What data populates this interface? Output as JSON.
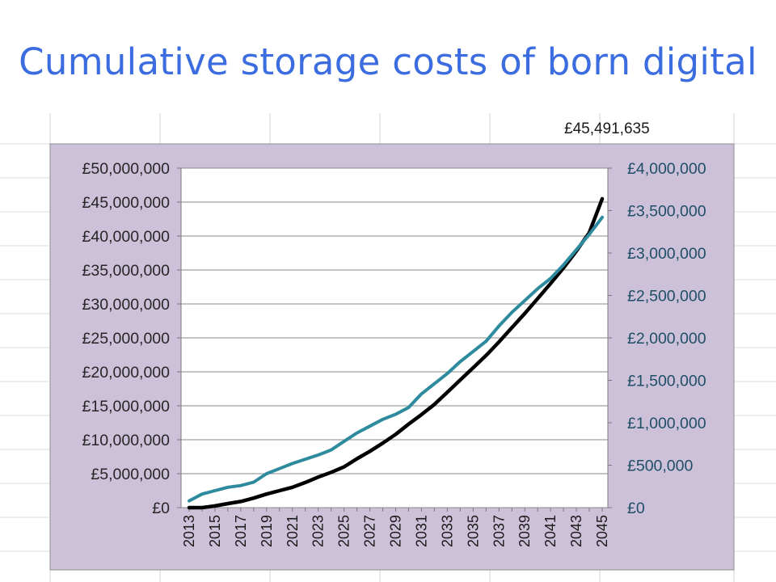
{
  "slide": {
    "title": "Cumulative storage costs of born digital"
  },
  "chart_data": {
    "type": "line",
    "annotation": "£45,491,635",
    "x": [
      2013,
      2014,
      2015,
      2016,
      2017,
      2018,
      2019,
      2020,
      2021,
      2022,
      2023,
      2024,
      2025,
      2026,
      2027,
      2028,
      2029,
      2030,
      2031,
      2032,
      2033,
      2034,
      2035,
      2036,
      2037,
      2038,
      2039,
      2040,
      2041,
      2042,
      2043,
      2044,
      2045
    ],
    "x_tick_labels": [
      "2013",
      "2015",
      "2017",
      "2019",
      "2021",
      "2023",
      "2025",
      "2027",
      "2029",
      "2031",
      "2033",
      "2035",
      "2037",
      "2039",
      "2041",
      "2043",
      "2045"
    ],
    "left_axis": {
      "ylim": [
        0,
        50000000
      ],
      "tick_labels": [
        "£0",
        "£5,000,000",
        "£10,000,000",
        "£15,000,000",
        "£20,000,000",
        "£25,000,000",
        "£30,000,000",
        "£35,000,000",
        "£40,000,000",
        "£45,000,000",
        "£50,000,000"
      ]
    },
    "right_axis": {
      "ylim": [
        0,
        4000000
      ],
      "tick_labels": [
        "£0",
        "£500,000",
        "£1,000,000",
        "£1,500,000",
        "£2,000,000",
        "£2,500,000",
        "£3,000,000",
        "£3,500,000",
        "£4,000,000"
      ]
    },
    "series": [
      {
        "axis": "left",
        "color": "#000000",
        "values": [
          0,
          0,
          250000,
          600000,
          900000,
          1400000,
          2000000,
          2500000,
          3000000,
          3700000,
          4500000,
          5200000,
          6000000,
          7200000,
          8300000,
          9500000,
          10800000,
          12300000,
          13700000,
          15200000,
          17000000,
          18800000,
          20600000,
          22400000,
          24400000,
          26500000,
          28600000,
          30800000,
          33000000,
          35300000,
          37800000,
          40500000,
          45491635
        ]
      },
      {
        "axis": "right",
        "color": "#2e8b9e",
        "values": [
          80000,
          160000,
          200000,
          240000,
          260000,
          300000,
          400000,
          460000,
          520000,
          570000,
          620000,
          680000,
          780000,
          880000,
          960000,
          1040000,
          1100000,
          1180000,
          1340000,
          1460000,
          1580000,
          1720000,
          1840000,
          1960000,
          2140000,
          2300000,
          2440000,
          2580000,
          2700000,
          2860000,
          3040000,
          3220000,
          3420000
        ]
      }
    ]
  }
}
